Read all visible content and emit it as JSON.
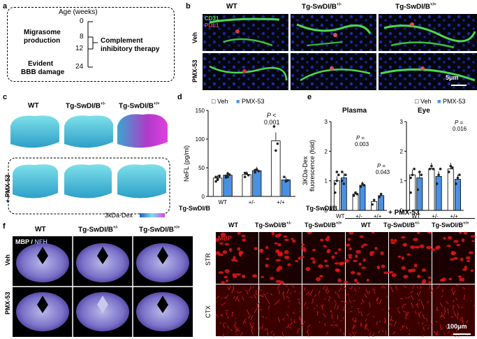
{
  "panels": {
    "a": {
      "label": "a",
      "axis_title": "Age (weeks)",
      "ticks": [
        "0",
        "8",
        "12",
        "24"
      ],
      "left_notes": [
        "Migrasome",
        "production",
        "Evident",
        "BBB damage"
      ],
      "right_notes": [
        "Complement",
        "inhibitory therapy"
      ]
    },
    "b": {
      "label": "b",
      "cols": [
        "WT",
        "Tg-SwDI/B",
        "Tg-SwDI/B"
      ],
      "col_sups": [
        "",
        "+/-",
        "+/+"
      ],
      "rows": [
        "Veh",
        "PMX-53"
      ],
      "legend": [
        "CD31",
        "PDL1"
      ],
      "scale": "5μm"
    },
    "c": {
      "label": "c",
      "cols": [
        "WT",
        "Tg-SwDI/B",
        "Tg-SwDI/B"
      ],
      "col_sups": [
        "",
        "+/-",
        "+/+"
      ],
      "row_label": "+ PMX-53",
      "colorbar_label": "3kDa-Dex"
    },
    "d": {
      "label": "d",
      "legend": [
        "Veh",
        "PMX-53"
      ],
      "ylabel": "NeFL (pg/ml)",
      "yticks": [
        "0",
        "50",
        "100",
        "150"
      ],
      "xlabel": "Tg-SwDI/B",
      "xticks": [
        "WT",
        "+/-",
        "+/+"
      ],
      "p_text": [
        "P <",
        "0.001"
      ]
    },
    "e": {
      "label": "e",
      "legend": [
        "Veh",
        "PMX-53"
      ],
      "ylabel": [
        "3KDa-Dex",
        "fluorescence (fold)"
      ],
      "yticks": [
        "0",
        "1",
        "2",
        "3"
      ],
      "xlabel": "Tg-SwDI/B",
      "xticks": [
        "WT",
        "+/-",
        "+/+"
      ],
      "plasma_title": "Plasma",
      "eye_title": "Eye",
      "plasma_p": [
        "P =",
        "0.003",
        "P =",
        "0.043"
      ],
      "eye_p": [
        "P =",
        "0.016"
      ]
    },
    "f": {
      "label": "f",
      "cols": [
        "WT",
        "Tg-SwDI/B",
        "Tg-SwDI/B"
      ],
      "col_sups": [
        "",
        "+/-",
        "+/+"
      ],
      "stain": [
        "MBP",
        "NFH"
      ],
      "rows": [
        "Veh",
        "PMX-53"
      ],
      "right_group": "+ PMX-53",
      "right_cols": [
        "WT",
        "Tg-SwDI/B",
        "Tg-SwDI/B",
        "WT",
        "Tg-SwDI/B",
        "Tg-SwDI/B"
      ],
      "right_sups": [
        "",
        "+/-",
        "+/+",
        "",
        "+/-",
        "+/+"
      ],
      "right_rows": [
        "STR",
        "CTX"
      ],
      "mbp_tag": "MBP",
      "scale": "100μm"
    }
  },
  "chart_data": [
    {
      "type": "bar",
      "panel": "d",
      "categories": [
        "WT",
        "+/-",
        "+/+"
      ],
      "series": [
        {
          "name": "Veh",
          "values": [
            32,
            38,
            97
          ],
          "color": "#ffffff"
        },
        {
          "name": "PMX-53",
          "values": [
            37,
            45,
            29
          ],
          "color": "#4a90e2"
        }
      ],
      "ylabel": "NeFL (pg/ml)",
      "ylim": [
        0,
        150
      ],
      "points": {
        "Veh": [
          [
            26,
            30,
            35,
            34,
            29,
            36
          ],
          [
            34,
            40,
            37,
            41
          ],
          [
            122,
            80,
            92
          ]
        ],
        "PMX-53": [
          [
            33,
            40,
            38,
            36,
            34
          ],
          [
            42,
            47,
            44,
            46
          ],
          [
            34,
            26,
            28
          ]
        ]
      }
    },
    {
      "type": "bar",
      "panel": "e-plasma",
      "title": "Plasma",
      "categories": [
        "WT",
        "+/-",
        "+/+"
      ],
      "series": [
        {
          "name": "Veh",
          "values": [
            1.0,
            0.55,
            0.3
          ],
          "color": "#ffffff"
        },
        {
          "name": "PMX-53",
          "values": [
            1.1,
            0.85,
            0.5
          ],
          "color": "#4a90e2"
        }
      ],
      "ylim": [
        0,
        3
      ],
      "points": {
        "Veh": [
          [
            0.6,
            1.0,
            1.2,
            0.9,
            1.3
          ],
          [
            0.5,
            0.6,
            0.55,
            0.5
          ],
          [
            0.2,
            0.35
          ]
        ],
        "PMX-53": [
          [
            1.3,
            0.9,
            1.2,
            1.0
          ],
          [
            0.8,
            0.9,
            0.85
          ],
          [
            0.45,
            0.55
          ]
        ]
      }
    },
    {
      "type": "bar",
      "panel": "e-eye",
      "title": "Eye",
      "categories": [
        "WT",
        "+/-",
        "+/+"
      ],
      "series": [
        {
          "name": "Veh",
          "values": [
            1.2,
            1.4,
            1.4
          ],
          "color": "#ffffff"
        },
        {
          "name": "PMX-53",
          "values": [
            1.1,
            1.15,
            1.05
          ],
          "color": "#4a90e2"
        }
      ],
      "ylim": [
        0,
        3
      ],
      "points": {
        "Veh": [
          [
            0.6,
            1.2,
            1.4,
            1.1
          ],
          [
            1.4,
            1.5,
            1.4
          ],
          [
            1.3,
            1.5,
            1.45
          ]
        ],
        "PMX-53": [
          [
            0.7,
            1.3,
            1.2
          ],
          [
            0.9,
            1.2,
            1.4
          ],
          [
            0.9,
            1.1,
            1.2
          ]
        ]
      }
    }
  ]
}
